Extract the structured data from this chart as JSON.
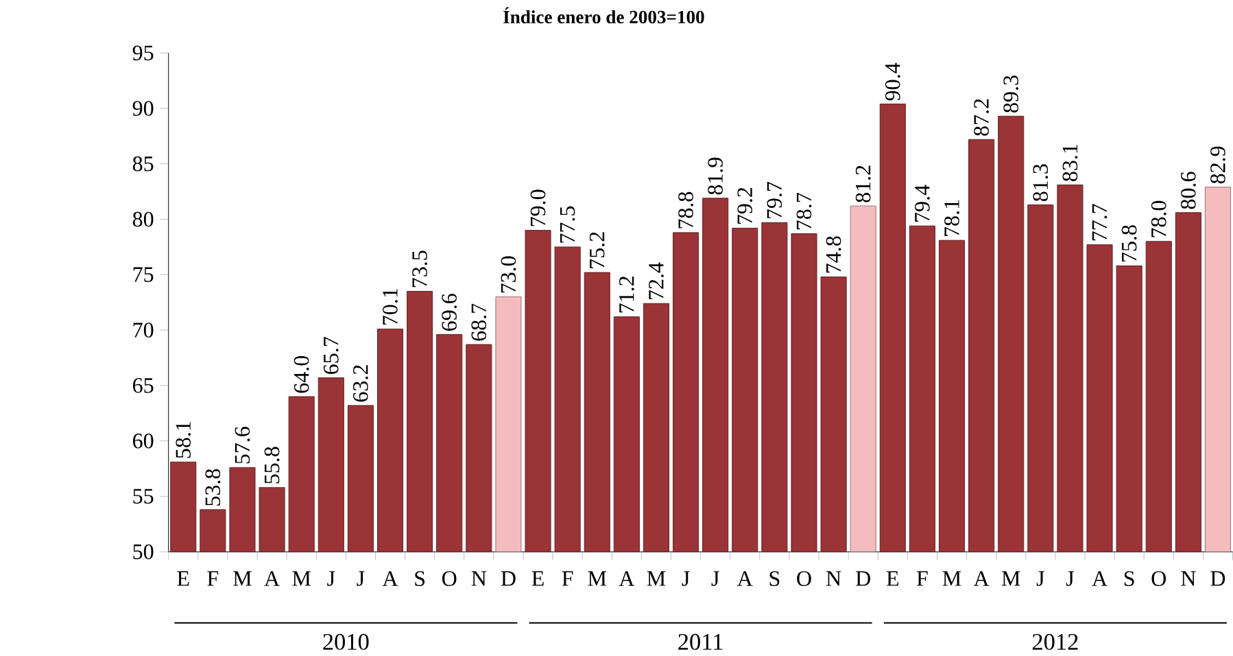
{
  "chart_data": {
    "type": "bar",
    "title": "Índice enero de 2003=100",
    "categories": [
      "E",
      "F",
      "M",
      "A",
      "M",
      "J",
      "J",
      "A",
      "S",
      "O",
      "N",
      "D",
      "E",
      "F",
      "M",
      "A",
      "M",
      "J",
      "J",
      "A",
      "S",
      "O",
      "N",
      "D",
      "E",
      "F",
      "M",
      "A",
      "M",
      "J",
      "J",
      "A",
      "S",
      "O",
      "N",
      "D"
    ],
    "values": [
      58.1,
      53.8,
      57.6,
      55.8,
      64.0,
      65.7,
      63.2,
      70.1,
      73.5,
      69.6,
      68.7,
      73.0,
      79.0,
      77.5,
      75.2,
      71.2,
      72.4,
      78.8,
      81.9,
      79.2,
      79.7,
      78.7,
      74.8,
      81.2,
      90.4,
      79.4,
      78.1,
      87.2,
      89.3,
      81.3,
      83.1,
      77.7,
      75.8,
      78.0,
      80.6,
      82.9
    ],
    "value_labels": [
      "58.1",
      "53.8",
      "57.6",
      "55.8",
      "64.0",
      "65.7",
      "63.2",
      "70.1",
      "73.5",
      "69.6",
      "68.7",
      "73.0",
      "79.0",
      "77.5",
      "75.2",
      "71.2",
      "72.4",
      "78.8",
      "81.9",
      "79.2",
      "79.7",
      "78.7",
      "74.8",
      "81.2",
      "90.4",
      "79.4",
      "78.1",
      "87.2",
      "89.3",
      "81.3",
      "83.1",
      "77.7",
      "75.8",
      "78.0",
      "80.6",
      "82.9"
    ],
    "colors": [
      "#9b3437",
      "#9b3437",
      "#9b3437",
      "#9b3437",
      "#9b3437",
      "#9b3437",
      "#9b3437",
      "#9b3437",
      "#9b3437",
      "#9b3437",
      "#9b3437",
      "#f5bcbf",
      "#9b3437",
      "#9b3437",
      "#9b3437",
      "#9b3437",
      "#9b3437",
      "#9b3437",
      "#9b3437",
      "#9b3437",
      "#9b3437",
      "#9b3437",
      "#9b3437",
      "#f5bcbf",
      "#9b3437",
      "#9b3437",
      "#9b3437",
      "#9b3437",
      "#9b3437",
      "#9b3437",
      "#9b3437",
      "#9b3437",
      "#9b3437",
      "#9b3437",
      "#9b3437",
      "#f5bcbf"
    ],
    "ylim": [
      50,
      95
    ],
    "yticks": [
      50,
      55,
      60,
      65,
      70,
      75,
      80,
      85,
      90,
      95
    ],
    "annotations": [
      "2010",
      "2011",
      "2012"
    ]
  }
}
